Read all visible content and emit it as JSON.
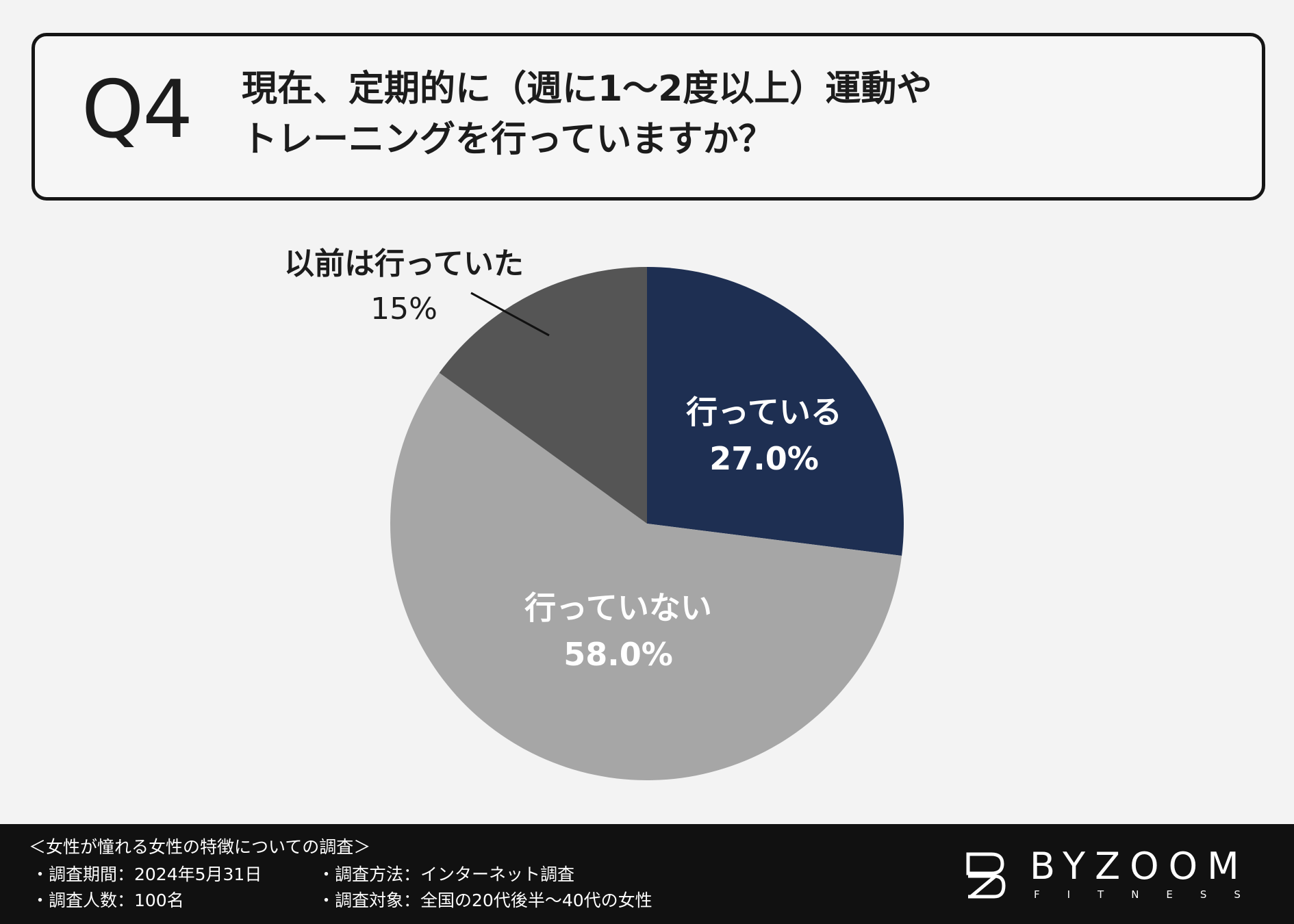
{
  "question": {
    "number": "Q4",
    "line1": "現在、定期的に（週に1〜2度以上）運動や",
    "line2": "トレーニングを行っていますか？"
  },
  "chart_data": {
    "type": "pie",
    "title": "",
    "slices": [
      {
        "label": "行っている",
        "value": 27.0,
        "value_label": "27.0%",
        "color": "#1e2f52",
        "label_color": "#ffffff"
      },
      {
        "label": "行っていない",
        "value": 58.0,
        "value_label": "58.0%",
        "color": "#a6a6a6",
        "label_color": "#ffffff"
      },
      {
        "label": "以前は行っていた",
        "value": 15.0,
        "value_label": "15%",
        "color": "#555555",
        "label_color": "#1c1c1c"
      }
    ]
  },
  "footer": {
    "survey_title": "＜女性が憧れる女性の特徴についての調査＞",
    "period": "・調査期間：2024年5月31日",
    "count": "・調査人数：100名",
    "method": "・調査方法：インターネット調査",
    "target": "・調査対象：全国の20代後半〜40代の女性",
    "logo_text": "BYZOOM",
    "logo_sub": "FITNESS"
  }
}
